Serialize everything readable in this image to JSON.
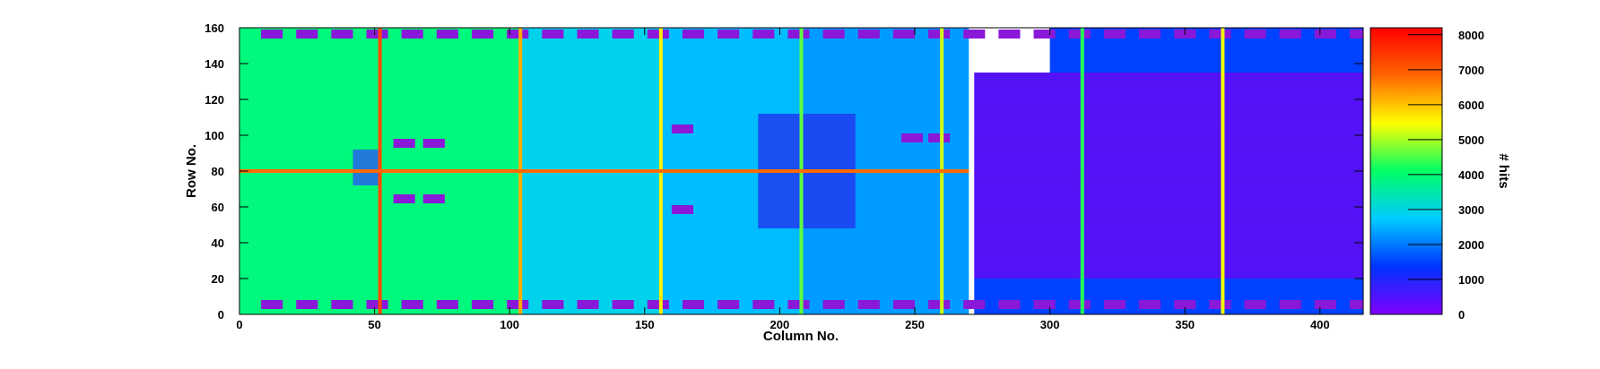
{
  "chart_data": {
    "type": "heatmap",
    "title": "",
    "xlabel": "Column No.",
    "ylabel": "Row No.",
    "zlabel": "# hits",
    "xlim": [
      0,
      416
    ],
    "ylim": [
      0,
      160
    ],
    "zlim": [
      0,
      8200
    ],
    "xticks": [
      "0",
      "50",
      "100",
      "150",
      "200",
      "250",
      "300",
      "350",
      "400"
    ],
    "yticks": [
      "0",
      "20",
      "40",
      "60",
      "80",
      "100",
      "120",
      "140",
      "160"
    ],
    "zticks": [
      "0",
      "1000",
      "2000",
      "3000",
      "4000",
      "5000",
      "6000",
      "7000",
      "8000"
    ],
    "colormap": [
      "#7f00ff",
      "#0033ff",
      "#00ccff",
      "#00ff66",
      "#ffff00",
      "#ff6600",
      "#ff0000"
    ],
    "grid": false,
    "regions": [
      {
        "name": "left half block",
        "x": [
          0,
          104
        ],
        "y": [
          0,
          160
        ],
        "hits": 3900
      },
      {
        "name": "middle-left block",
        "x": [
          104,
          156
        ],
        "y": [
          0,
          160
        ],
        "hits": 2900
      },
      {
        "name": "middle block",
        "x": [
          156,
          208
        ],
        "y": [
          0,
          160
        ],
        "hits": 2600
      },
      {
        "name": "right-middle block",
        "x": [
          208,
          270
        ],
        "y": [
          0,
          160
        ],
        "hits": 2300
      },
      {
        "name": "dense pad array",
        "x": [
          272,
          416
        ],
        "y": [
          20,
          135
        ],
        "hits": 400
      },
      {
        "name": "right lower area",
        "x": [
          272,
          416
        ],
        "y": [
          0,
          20
        ],
        "hits": 1500
      },
      {
        "name": "right upper area",
        "x": [
          300,
          416
        ],
        "y": [
          135,
          160
        ],
        "hits": 1500
      }
    ],
    "hot_columns": [
      {
        "x": 52,
        "hits": 7200
      },
      {
        "x": 104,
        "hits": 6200
      },
      {
        "x": 156,
        "hits": 5600
      },
      {
        "x": 208,
        "hits": 4600
      },
      {
        "x": 260,
        "hits": 5200
      },
      {
        "x": 312,
        "hits": 4300
      },
      {
        "x": 364,
        "hits": 5400
      }
    ],
    "hot_rows": [
      {
        "y": 80,
        "x": [
          0,
          270
        ],
        "hits": 6800
      }
    ]
  }
}
